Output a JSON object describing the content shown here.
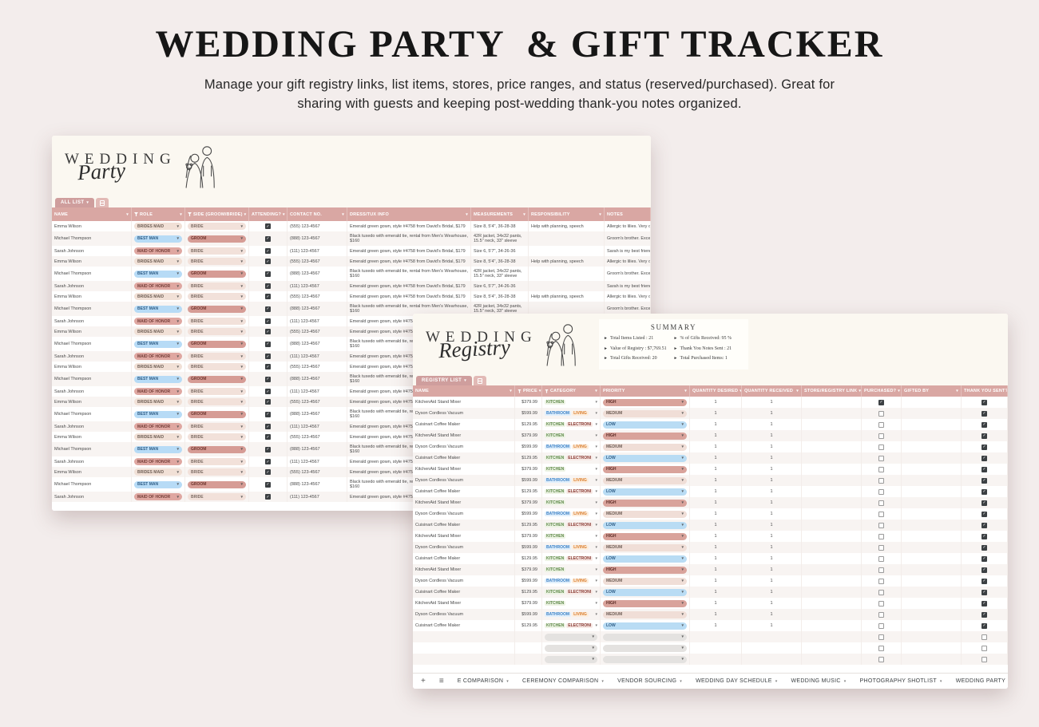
{
  "hero": {
    "title": "WEDDING PARTY  & GIFT TRACKER",
    "subtitle_line1": "Manage your gift registry links, list items, stores, price ranges, and status (reserved/purchased). Great for",
    "subtitle_line2": "sharing with guests and keeping post-wedding thank-you notes organized."
  },
  "party": {
    "logo_line1": "WEDDING",
    "logo_line2": "Party",
    "tab_label": "ALL LIST",
    "columns": [
      {
        "label": "NAME",
        "arrow": true
      },
      {
        "label": "ROLE",
        "funnel": true,
        "arrow": true
      },
      {
        "label": "SIDE (GROOM/BRIDE)",
        "funnel": true,
        "arrow": true
      },
      {
        "label": "ATTENDING?",
        "arrow": true
      },
      {
        "label": "CONTACT NO.",
        "arrow": true
      },
      {
        "label": "DRESS/TUX INFO",
        "arrow": true
      },
      {
        "label": "MEASUREMENTS",
        "arrow": true
      },
      {
        "label": "RESPONSIBILITY",
        "arrow": true
      },
      {
        "label": "NOTES",
        "arrow": false
      }
    ],
    "repeat_count": 8,
    "members": [
      {
        "name": "Emma Wilson",
        "role": "BRIDES MAID",
        "role_style": "tan",
        "side": "BRIDE",
        "side_style": "bride",
        "attending": true,
        "contact": "(555) 123-4567",
        "dress_tux_info": "Emerald green gown, style #4758 from David's Bridal, $179",
        "measurements": "Size 8, 5'4\", 36-28-38",
        "responsibility": "Help with planning, speech",
        "notes": "Allergic to lilies. Very org",
        "two_line": false
      },
      {
        "name": "Michael Thompson",
        "role": "BEST MAN",
        "role_style": "blue",
        "side": "GROOM",
        "side_style": "groom",
        "attending": true,
        "contact": "(888) 123-4567",
        "dress_tux_info": "Black tuxedo with emerald tie, rental from Men's Wearhouse, $160",
        "measurements": "42R jacket, 34x32 pants, 15.5\" neck, 33\" sleeve",
        "responsibility": "",
        "notes": "Groom's brother. Excelle",
        "two_line": true
      },
      {
        "name": "Sarah Johnson",
        "role": "MAID OF HONOR",
        "role_style": "rose",
        "side": "BRIDE",
        "side_style": "bride",
        "attending": true,
        "contact": "(111) 123-4567",
        "dress_tux_info": "Emerald green gown, style #4758 from David's Bridal, $179",
        "measurements": "Size 6, 5'7\", 34-26-36",
        "responsibility": "",
        "notes": "Sarah is my best friend si",
        "two_line": false
      }
    ]
  },
  "registry": {
    "logo_line1": "WEDDING",
    "logo_line2": "Registry",
    "tab_label": "REGISTRY LIST",
    "summary": {
      "title": "SUMMARY",
      "left_items": [
        "Total Items Listed : 21",
        "Value of Registry : $7,769.51",
        "Total Gifts Received: 20"
      ],
      "right_items": [
        "% of Gifts Received: 95 %",
        "Thank You Notes Sent : 21",
        "Total Purchased Items: 1"
      ]
    },
    "columns": [
      {
        "label": "NAME",
        "arrow": true
      },
      {
        "label": "PRICE",
        "funnel": true,
        "arrow": true
      },
      {
        "label": "CATEGORY",
        "funnel": true,
        "arrow": true
      },
      {
        "label": "PRIORITY",
        "arrow": true
      },
      {
        "label": "QUANTITY DESIRED",
        "arrow": true
      },
      {
        "label": "QUANTITY RECEIVED",
        "arrow": true
      },
      {
        "label": "STORE/REGISTRY LINK",
        "arrow": true
      },
      {
        "label": "PURCHASED?",
        "arrow": true
      },
      {
        "label": "GIFTED BY",
        "arrow": true
      },
      {
        "label": "THANK YOU SENT?",
        "arrow": false
      }
    ],
    "repeat_count": 7,
    "empty_row_count": 3,
    "items": [
      {
        "name": "KitchenAid Stand Mixer",
        "price": "$379.99",
        "categories": [
          {
            "label": "KITCHEN",
            "style": "green"
          }
        ],
        "priority": "HIGH",
        "priority_style": "high",
        "quantity_desired": "1",
        "quantity_received": "1",
        "store_link": "",
        "purchased": true,
        "gifted_by": "",
        "thank_you_sent": true
      },
      {
        "name": "Dyson Cordless Vacuum",
        "price": "$599.99",
        "categories": [
          {
            "label": "BATHROOM",
            "style": "blue"
          },
          {
            "label": "LIVING",
            "style": "orange"
          }
        ],
        "priority": "MEDIUM",
        "priority_style": "medium",
        "quantity_desired": "1",
        "quantity_received": "1",
        "store_link": "",
        "purchased": false,
        "gifted_by": "",
        "thank_you_sent": true
      },
      {
        "name": "Cuisinart Coffee Maker",
        "price": "$129.95",
        "categories": [
          {
            "label": "KITCHEN",
            "style": "green"
          },
          {
            "label": "ELECTRONI",
            "style": "maroon"
          }
        ],
        "priority": "LOW",
        "priority_style": "low",
        "quantity_desired": "1",
        "quantity_received": "1",
        "store_link": "",
        "purchased": false,
        "gifted_by": "",
        "thank_you_sent": true
      }
    ],
    "bottom_bar": {
      "add_icon": "+",
      "all_sheets_icon": "≡",
      "tabs": [
        "E COMPARISON",
        "CEREMONY COMPARISON",
        "VENDOR SOURCING",
        "WEDDING DAY SCHEDULE",
        "WEDDING MUSIC",
        "PHOTOGRAPHY SHOTLIST",
        "WEDDING PARTY"
      ]
    }
  },
  "colors": {
    "page_bg": "#f3edec",
    "sheet_cream": "#fbf8f1",
    "header_band": "#d9a7a3",
    "tab_active": "#cf9e9d",
    "chip_high": "#d9a39b",
    "chip_medium": "#f0ded7",
    "chip_low": "#b9dcf4",
    "chip_best_man": "#b7dbf6",
    "chip_maid_of_honor": "#dfa7a1",
    "chip_groom": "#d69c95",
    "chip_bride": "#f2e1da",
    "checkbox_checked": "#3c4043"
  }
}
